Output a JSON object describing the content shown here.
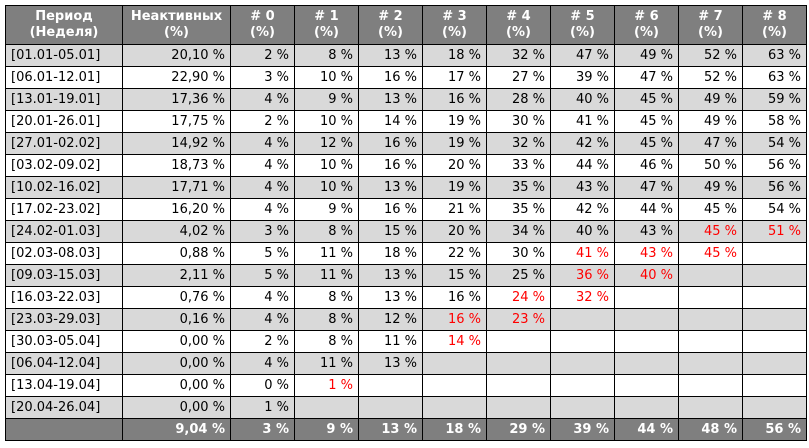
{
  "headers": [
    [
      "Период",
      "(Неделя)"
    ],
    [
      "Неактивных",
      "(%)"
    ],
    [
      "# 0",
      "(%)"
    ],
    [
      "# 1",
      "(%)"
    ],
    [
      "# 2",
      "(%)"
    ],
    [
      "# 3",
      "(%)"
    ],
    [
      "# 4",
      "(%)"
    ],
    [
      "# 5",
      "(%)"
    ],
    [
      "# 6",
      "(%)"
    ],
    [
      "# 7",
      "(%)"
    ],
    [
      "# 8",
      "(%)"
    ]
  ],
  "rows": [
    {
      "period": "[01.01-05.01]",
      "inactive": "20,10 %",
      "weeks": [
        "2 %",
        "8 %",
        "13 %",
        "18 %",
        "32 %",
        "47 %",
        "49 %",
        "52 %",
        "63 %"
      ],
      "highlight_from": null
    },
    {
      "period": "[06.01-12.01]",
      "inactive": "22,90 %",
      "weeks": [
        "3 %",
        "10 %",
        "16 %",
        "17 %",
        "27 %",
        "39 %",
        "47 %",
        "52 %",
        "63 %"
      ],
      "highlight_from": null
    },
    {
      "period": "[13.01-19.01]",
      "inactive": "17,36 %",
      "weeks": [
        "4 %",
        "9 %",
        "13 %",
        "16 %",
        "28 %",
        "40 %",
        "45 %",
        "49 %",
        "59 %"
      ],
      "highlight_from": null
    },
    {
      "period": "[20.01-26.01]",
      "inactive": "17,75 %",
      "weeks": [
        "2 %",
        "10 %",
        "14 %",
        "19 %",
        "30 %",
        "41 %",
        "45 %",
        "49 %",
        "58 %"
      ],
      "highlight_from": null
    },
    {
      "period": "[27.01-02.02]",
      "inactive": "14,92 %",
      "weeks": [
        "4 %",
        "12 %",
        "16 %",
        "19 %",
        "32 %",
        "42 %",
        "45 %",
        "47 %",
        "54 %"
      ],
      "highlight_from": null
    },
    {
      "period": "[03.02-09.02]",
      "inactive": "18,73 %",
      "weeks": [
        "4 %",
        "10 %",
        "16 %",
        "20 %",
        "33 %",
        "44 %",
        "46 %",
        "50 %",
        "56 %"
      ],
      "highlight_from": null
    },
    {
      "period": "[10.02-16.02]",
      "inactive": "17,71 %",
      "weeks": [
        "4 %",
        "10 %",
        "13 %",
        "19 %",
        "35 %",
        "43 %",
        "47 %",
        "49 %",
        "56 %"
      ],
      "highlight_from": null
    },
    {
      "period": "[17.02-23.02]",
      "inactive": "16,20 %",
      "weeks": [
        "4 %",
        "9 %",
        "16 %",
        "21 %",
        "35 %",
        "42 %",
        "44 %",
        "45 %",
        "54 %"
      ],
      "highlight_from": null
    },
    {
      "period": "[24.02-01.03]",
      "inactive": "4,02 %",
      "weeks": [
        "3 %",
        "8 %",
        "15 %",
        "20 %",
        "34 %",
        "40 %",
        "43 %",
        "45 %",
        "51 %"
      ],
      "highlight_from": 7
    },
    {
      "period": "[02.03-08.03]",
      "inactive": "0,88 %",
      "weeks": [
        "5 %",
        "11 %",
        "18 %",
        "22 %",
        "30 %",
        "41 %",
        "43 %",
        "45 %",
        ""
      ],
      "highlight_from": 5
    },
    {
      "period": "[09.03-15.03]",
      "inactive": "2,11 %",
      "weeks": [
        "5 %",
        "11 %",
        "13 %",
        "15 %",
        "25 %",
        "36 %",
        "40 %",
        "",
        ""
      ],
      "highlight_from": 5
    },
    {
      "period": "[16.03-22.03]",
      "inactive": "0,76 %",
      "weeks": [
        "4 %",
        "8 %",
        "13 %",
        "16 %",
        "24 %",
        "32 %",
        "",
        "",
        ""
      ],
      "highlight_from": 4
    },
    {
      "period": "[23.03-29.03]",
      "inactive": "0,16 %",
      "weeks": [
        "4 %",
        "8 %",
        "12 %",
        "16 %",
        "23 %",
        "",
        "",
        "",
        ""
      ],
      "highlight_from": 3
    },
    {
      "period": "[30.03-05.04]",
      "inactive": "0,00 %",
      "weeks": [
        "2 %",
        "8 %",
        "11 %",
        "14 %",
        "",
        "",
        "",
        "",
        ""
      ],
      "highlight_from": 3
    },
    {
      "period": "[06.04-12.04]",
      "inactive": "0,00 %",
      "weeks": [
        "4 %",
        "11 %",
        "13 %",
        "",
        "",
        "",
        "",
        "",
        ""
      ],
      "highlight_from": null
    },
    {
      "period": "[13.04-19.04]",
      "inactive": "0,00 %",
      "weeks": [
        "0 %",
        "1 %",
        "",
        "",
        "",
        "",
        "",
        "",
        ""
      ],
      "highlight_from": 1
    },
    {
      "period": "[20.04-26.04]",
      "inactive": "0,00 %",
      "weeks": [
        "1 %",
        "",
        "",
        "",
        "",
        "",
        "",
        "",
        ""
      ],
      "highlight_from": null
    }
  ],
  "totals": {
    "period": "",
    "inactive": "9,04 %",
    "weeks": [
      "3 %",
      "9 %",
      "13 %",
      "18 %",
      "29 %",
      "39 %",
      "44 %",
      "48 %",
      "56 %"
    ]
  },
  "colors": {
    "header_bg": "#7f7f7f",
    "shaded_row": "#d9d9d9",
    "plain_row": "#ffffff",
    "highlight_text": "#ff0000"
  }
}
